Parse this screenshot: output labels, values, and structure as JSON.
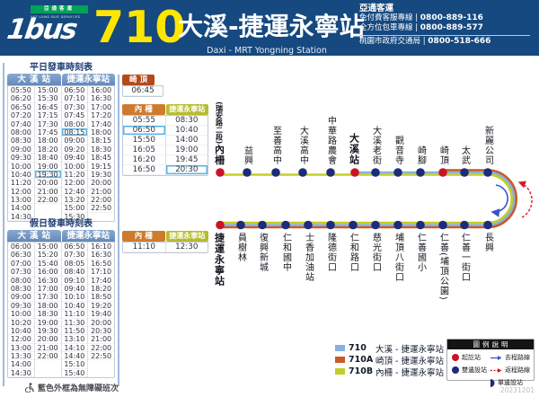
{
  "header": {
    "brand": "1bus",
    "company_cn": "亞通客運",
    "company_en": "YAT LUNG BUS SERVICES",
    "route_number": "710",
    "title": "大溪-捷運永寧站",
    "subtitle": "Daxi - MRT Yongning Station",
    "contact": {
      "company": "亞通客運",
      "separator": "|",
      "lines": [
        {
          "label": "免付費客服專線",
          "number": "0800-889-116"
        },
        {
          "label": "全方位包車專線",
          "number": "0800-889-577"
        },
        {
          "label": "桃園市政府交通局",
          "number": "0800-518-666"
        }
      ]
    }
  },
  "timetables": {
    "weekday": {
      "title": "平日發車時刻表",
      "headers": [
        "大溪站",
        "捷運永寧站"
      ],
      "cols": [
        [
          "05:50",
          "06:20",
          "06:50",
          "07:20",
          "07:40",
          "08:00",
          "08:30",
          "09:00",
          "09:30",
          "10:00",
          "10:40",
          "11:20",
          "12:00",
          "13:00",
          "14:00",
          "14:30"
        ],
        [
          "15:00",
          "15:30",
          "16:45",
          "17:15",
          "17:30",
          "17:45",
          "18:00",
          "18:20",
          "18:40",
          "19:00",
          "19:30",
          "20:00",
          "21:00",
          "22:00"
        ],
        [
          "06:50",
          "07:10",
          "07:30",
          "07:45",
          "08:00",
          "08:15",
          "09:00",
          "09:20",
          "09:40",
          "10:00",
          "11:20",
          "12:00",
          "12:40",
          "13:20",
          "15:00",
          "15:30"
        ],
        [
          "16:00",
          "16:30",
          "17:00",
          "17:20",
          "17:40",
          "18:00",
          "18:15",
          "18:30",
          "18:45",
          "19:15",
          "19:30",
          "20:00",
          "21:00",
          "22:00",
          "22:50"
        ]
      ],
      "highlights": [
        [],
        [
          "19:30"
        ],
        [
          "08:15"
        ],
        []
      ]
    },
    "holiday": {
      "title": "假日發車時刻表",
      "headers": [
        "大溪站",
        "捷運永寧站"
      ],
      "cols": [
        [
          "06:00",
          "06:30",
          "07:00",
          "07:30",
          "08:00",
          "08:30",
          "09:00",
          "09:30",
          "10:00",
          "10:20",
          "10:40",
          "12:00",
          "13:00",
          "13:30",
          "14:00",
          "14:30"
        ],
        [
          "15:00",
          "15:20",
          "15:40",
          "16:00",
          "16:30",
          "17:00",
          "17:30",
          "18:00",
          "18:30",
          "19:00",
          "19:30",
          "20:00",
          "21:00",
          "22:00"
        ],
        [
          "06:50",
          "07:30",
          "08:05",
          "08:40",
          "09:10",
          "09:40",
          "10:10",
          "10:40",
          "11:10",
          "11:30",
          "11:50",
          "13:10",
          "14:10",
          "14:40",
          "15:10",
          "15:40"
        ],
        [
          "16:10",
          "16:30",
          "16:50",
          "17:10",
          "17:40",
          "18:20",
          "18:50",
          "19:20",
          "19:40",
          "20:00",
          "20:30",
          "21:00",
          "22:00",
          "22:50"
        ]
      ],
      "highlights": [
        [],
        [],
        [],
        []
      ]
    }
  },
  "branch": {
    "qiding": {
      "header": "崎頂",
      "cols": [
        [
          "06:45"
        ]
      ],
      "highlights": [
        []
      ]
    },
    "neizha_weekday": {
      "headers": [
        "內柵",
        "捷運永寧站"
      ],
      "cols": [
        [
          "05:55",
          "06:50",
          "15:50",
          "16:05",
          "16:20",
          "16:50"
        ],
        [
          "08:30",
          "10:40",
          "14:00",
          "19:00",
          "19:45",
          "20:30"
        ]
      ],
      "highlights": [
        [
          "06:50"
        ],
        [
          "20:30"
        ]
      ]
    },
    "neizha_holiday": {
      "headers": [
        "內柵",
        "捷運永寧站"
      ],
      "cols": [
        [
          "11:10"
        ],
        [
          "12:30"
        ]
      ],
      "highlights": [
        [],
        []
      ]
    }
  },
  "route_map": {
    "top_stations": [
      {
        "prefix": "(瑞安路二段)",
        "name": "內柵",
        "red": true,
        "bold": true
      },
      {
        "name": "益興"
      },
      {
        "name": "至善高中"
      },
      {
        "name": "大溪高中"
      },
      {
        "name": "中華路農會"
      },
      {
        "name": "大溪站",
        "red": true,
        "bold": true
      },
      {
        "name": "大溪老街"
      },
      {
        "name": "觀音寺"
      },
      {
        "name": "崎腳"
      },
      {
        "name": "崎頂",
        "red": true
      },
      {
        "name": "太武"
      },
      {
        "name": "新麗公司"
      }
    ],
    "bottom_stations": [
      {
        "name": "捷運永寧站",
        "red": true,
        "bold": true
      },
      {
        "name": "員樹林"
      },
      {
        "name": "復興新城"
      },
      {
        "name": "仁和國中"
      },
      {
        "name": "士香加油站"
      },
      {
        "name": "隆德街口"
      },
      {
        "name": "仁和路口"
      },
      {
        "name": "慈光街口"
      },
      {
        "name": "埔頂八街口"
      },
      {
        "name": "仁善國小"
      },
      {
        "name": "仁善(埔頂公園)"
      },
      {
        "name": "仁善一街口"
      },
      {
        "name": "長興"
      }
    ],
    "colors": {
      "route_710": "#85b3da",
      "route_710A": "#c75b28",
      "route_710B": "#c4cd28",
      "stop": "#1c2b7a",
      "terminal": "#cd1126",
      "outbound_arrow": "#3a53cc",
      "return_arrow": "#d41a2a"
    },
    "segments": {
      "blue_start_index": 5,
      "orange_start_index": 9
    }
  },
  "route_legend": {
    "routes": [
      {
        "code": "710",
        "name": "大溪 - 捷運永寧站",
        "color": "#85b3da"
      },
      {
        "code": "710A",
        "name": "崎頂 - 捷運永寧站",
        "color": "#c75b28"
      },
      {
        "code": "710B",
        "name": "內柵 - 捷運永寧站",
        "color": "#c4cd28"
      }
    ]
  },
  "legend": {
    "title": "圖例說明",
    "items": [
      {
        "icon": "red-dot-icon",
        "label": "起訖站"
      },
      {
        "icon": "blue-dot-icon",
        "label": "雙邊設站"
      },
      {
        "icon": "outbound-arrow-icon",
        "label": "去程路線"
      },
      {
        "icon": "return-arrow-icon",
        "label": "返程路線"
      },
      {
        "icon": "half-dot-icon",
        "label": "單邊設站"
      }
    ]
  },
  "accessibility_note": "藍色外框為無障礙班次",
  "version_date": "20231201"
}
